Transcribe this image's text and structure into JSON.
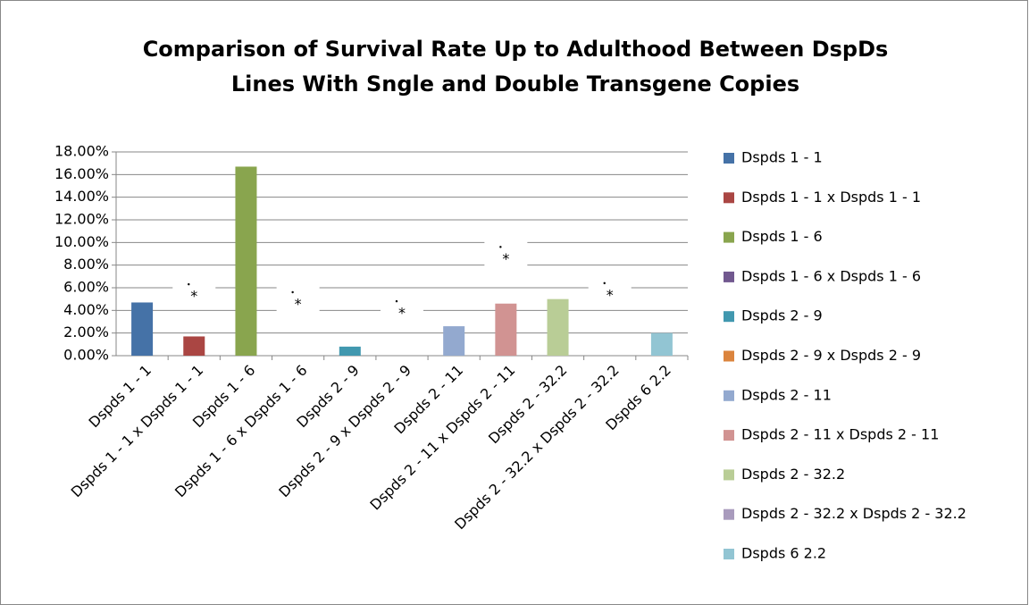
{
  "chart_data": {
    "type": "bar",
    "title": [
      "Comparison of Survival Rate Up to Adulthood Between DspDs",
      "Lines With Sngle and Double Transgene Copies"
    ],
    "categories": [
      "Dspds 1 - 1",
      "Dspds 1 - 1 x Dspds 1 - 1",
      "Dspds 1 - 6",
      "Dspds 1 - 6 x Dspds 1 - 6",
      "Dspds 2 - 9",
      "Dspds 2 - 9 x Dspds 2 - 9",
      "Dspds 2 - 11",
      "Dspds 2 - 11 x Dspds 2 - 11",
      "Dspds 2 - 32.2",
      "Dspds 2 - 32.2 x Dspds 2 - 32.2",
      "Dspds 6 2.2"
    ],
    "values": [
      4.7,
      1.7,
      16.7,
      0,
      0.8,
      0,
      2.6,
      4.6,
      5.0,
      0,
      2.0
    ],
    "colors": [
      "#4572a7",
      "#aa4643",
      "#89a54e",
      "#71588f",
      "#4198af",
      "#db843d",
      "#93a9cf",
      "#d19392",
      "#b9cd96",
      "#a99bbd",
      "#92c5d3"
    ],
    "ylim": [
      0,
      18
    ],
    "yticks": [
      {
        "value": 0,
        "label": "0.00%"
      },
      {
        "value": 2,
        "label": "2.00%"
      },
      {
        "value": 4,
        "label": "4.00%"
      },
      {
        "value": 6,
        "label": "6.00%"
      },
      {
        "value": 8,
        "label": "8.00%"
      },
      {
        "value": 10,
        "label": "10.00%"
      },
      {
        "value": 12,
        "label": "12.00%"
      },
      {
        "value": 14,
        "label": "14.00%"
      },
      {
        "value": 16,
        "label": "16.00%"
      },
      {
        "value": 18,
        "label": "18.00%"
      }
    ],
    "grid": true,
    "legend": "right",
    "annotations": [
      {
        "text": "*",
        "x": "Dspds 1 - 1 x Dspds 1 - 1",
        "y": 5.2
      },
      {
        "text": "*",
        "x": "Dspds 1 - 6 x Dspds 1 - 6",
        "y": 4.5
      },
      {
        "text": "*",
        "x": "Dspds 2 - 9 x Dspds 2 - 9",
        "y": 3.7
      },
      {
        "text": "*",
        "x": "Dspds 2 - 11 x Dspds 2 - 11",
        "y": 8.5
      },
      {
        "text": "*",
        "x": "Dspds 2 - 32.2 x Dspds 2 - 32.2",
        "y": 5.3
      }
    ]
  }
}
